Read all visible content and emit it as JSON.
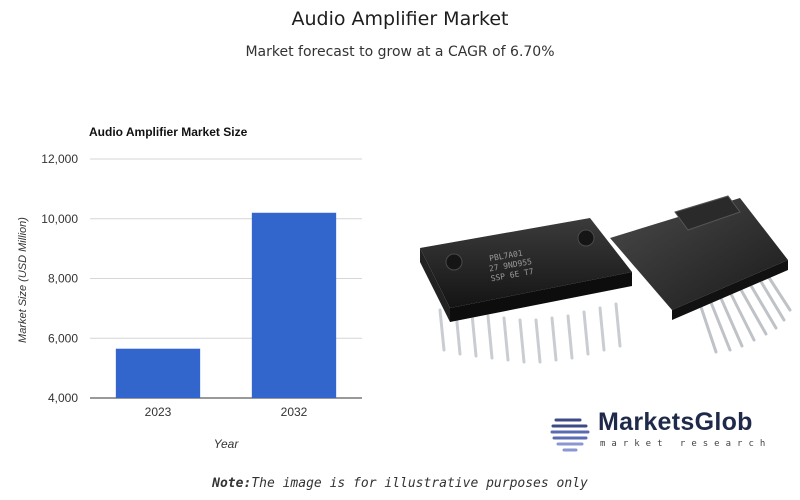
{
  "header": {
    "title": "Audio Amplifier Market",
    "subtitle": "Market forecast to grow at a CAGR of 6.70%"
  },
  "chart_data": {
    "type": "bar",
    "title": "Audio Amplifier Market Size",
    "xlabel": "Year",
    "ylabel": "Market Size (USD Million)",
    "categories": [
      "2023",
      "2032"
    ],
    "values": [
      5650,
      10200
    ],
    "ylim": [
      4000,
      12000
    ],
    "yticks": [
      "4,000",
      "6,000",
      "8,000",
      "10,000",
      "12,000"
    ],
    "grid": true,
    "bar_color": "#3366cc"
  },
  "logo": {
    "name": "MarketsGlob",
    "tagline": "market research"
  },
  "note": {
    "label": "Note:",
    "text": "The image is for illustrative purposes only"
  }
}
